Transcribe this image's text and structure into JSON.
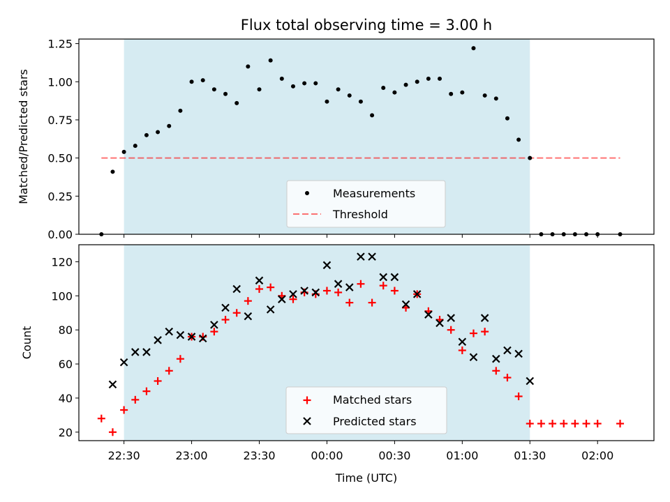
{
  "title": "Flux total observing time = 3.00 h",
  "colors": {
    "observing_window": "#add8e6",
    "measurement": "#000000",
    "threshold": "#ff0000",
    "matched": "#ff0000",
    "predicted": "#000000"
  },
  "chart_data": [
    {
      "type": "scatter",
      "panel": "top",
      "xlabel": "",
      "ylabel": "Matched/Predicted stars",
      "ylim": [
        0,
        1.28
      ],
      "yticks": [
        0.0,
        0.25,
        0.5,
        0.75,
        1.0,
        1.25
      ],
      "ytick_labels": [
        "0.00",
        "0.25",
        "0.50",
        "0.75",
        "1.00",
        "1.25"
      ],
      "observing_window": [
        "22:30",
        "01:30"
      ],
      "legend": {
        "placement": "lower center",
        "entries": [
          "Measurements",
          "Threshold"
        ]
      },
      "series": [
        {
          "name": "Measurements",
          "marker": "dot",
          "x": [
            "22:20",
            "22:25",
            "22:30",
            "22:35",
            "22:40",
            "22:45",
            "22:50",
            "22:55",
            "23:00",
            "23:05",
            "23:10",
            "23:15",
            "23:20",
            "23:25",
            "23:30",
            "23:35",
            "23:40",
            "23:45",
            "23:50",
            "23:55",
            "00:00",
            "00:05",
            "00:10",
            "00:15",
            "00:20",
            "00:25",
            "00:30",
            "00:35",
            "00:40",
            "00:45",
            "00:50",
            "00:55",
            "01:00",
            "01:05",
            "01:10",
            "01:15",
            "01:20",
            "01:25",
            "01:30",
            "01:35",
            "01:40",
            "01:45",
            "01:50",
            "01:55",
            "02:00",
            "02:10"
          ],
          "y": [
            0.0,
            0.41,
            0.54,
            0.58,
            0.65,
            0.67,
            0.71,
            0.81,
            1.0,
            1.01,
            0.95,
            0.92,
            0.86,
            1.1,
            0.95,
            1.14,
            1.02,
            0.97,
            0.99,
            0.99,
            0.87,
            0.95,
            0.91,
            0.87,
            0.78,
            0.96,
            0.93,
            0.98,
            1.0,
            1.02,
            1.02,
            0.92,
            0.93,
            1.22,
            0.91,
            0.89,
            0.76,
            0.62,
            0.5,
            0.0,
            0.0,
            0.0,
            0.0,
            0.0,
            0.0,
            0.0
          ]
        },
        {
          "name": "Threshold",
          "style": "dashed",
          "x": [
            "22:20",
            "02:10"
          ],
          "y": [
            0.5,
            0.5
          ]
        }
      ]
    },
    {
      "type": "scatter",
      "panel": "bottom",
      "xlabel": "Time (UTC)",
      "ylabel": "Count",
      "ylim": [
        15,
        130
      ],
      "yticks": [
        20,
        40,
        60,
        80,
        100,
        120
      ],
      "xlim": [
        "22:10",
        "02:25"
      ],
      "xticks": [
        "22:30",
        "23:00",
        "23:30",
        "00:00",
        "00:30",
        "01:00",
        "01:30",
        "02:00"
      ],
      "observing_window": [
        "22:30",
        "01:30"
      ],
      "legend": {
        "placement": "lower center",
        "entries": [
          "Matched stars",
          "Predicted stars"
        ]
      },
      "series": [
        {
          "name": "Matched stars",
          "marker": "plus",
          "x": [
            "22:20",
            "22:25",
            "22:30",
            "22:35",
            "22:40",
            "22:45",
            "22:50",
            "22:55",
            "23:00",
            "23:05",
            "23:10",
            "23:15",
            "23:20",
            "23:25",
            "23:30",
            "23:35",
            "23:40",
            "23:45",
            "23:50",
            "23:55",
            "00:00",
            "00:05",
            "00:10",
            "00:15",
            "00:20",
            "00:25",
            "00:30",
            "00:35",
            "00:40",
            "00:45",
            "00:50",
            "00:55",
            "01:00",
            "01:05",
            "01:10",
            "01:15",
            "01:20",
            "01:25",
            "01:30",
            "01:35",
            "01:40",
            "01:45",
            "01:50",
            "01:55",
            "02:00",
            "02:10"
          ],
          "y": [
            28,
            20,
            33,
            39,
            44,
            50,
            56,
            63,
            76,
            76,
            79,
            86,
            90,
            97,
            104,
            105,
            100,
            98,
            102,
            101,
            103,
            102,
            96,
            107,
            96,
            106,
            103,
            93,
            101,
            91,
            86,
            80,
            68,
            78,
            79,
            56,
            52,
            41,
            25,
            25,
            25,
            25,
            25,
            25,
            25,
            25
          ]
        },
        {
          "name": "Predicted stars",
          "marker": "x",
          "x": [
            "22:25",
            "22:30",
            "22:35",
            "22:40",
            "22:45",
            "22:50",
            "22:55",
            "23:00",
            "23:05",
            "23:10",
            "23:15",
            "23:20",
            "23:25",
            "23:30",
            "23:35",
            "23:40",
            "23:45",
            "23:50",
            "23:55",
            "00:00",
            "00:05",
            "00:10",
            "00:15",
            "00:20",
            "00:25",
            "00:30",
            "00:35",
            "00:40",
            "00:45",
            "00:50",
            "00:55",
            "01:00",
            "01:05",
            "01:10",
            "01:15",
            "01:20",
            "01:25",
            "01:30"
          ],
          "y": [
            48,
            61,
            67,
            67,
            74,
            79,
            77,
            76,
            75,
            83,
            93,
            104,
            88,
            109,
            92,
            98,
            101,
            103,
            102,
            118,
            107,
            105,
            123,
            123,
            111,
            111,
            95,
            101,
            89,
            84,
            87,
            73,
            64,
            87,
            63,
            68,
            66,
            50
          ]
        }
      ]
    }
  ]
}
